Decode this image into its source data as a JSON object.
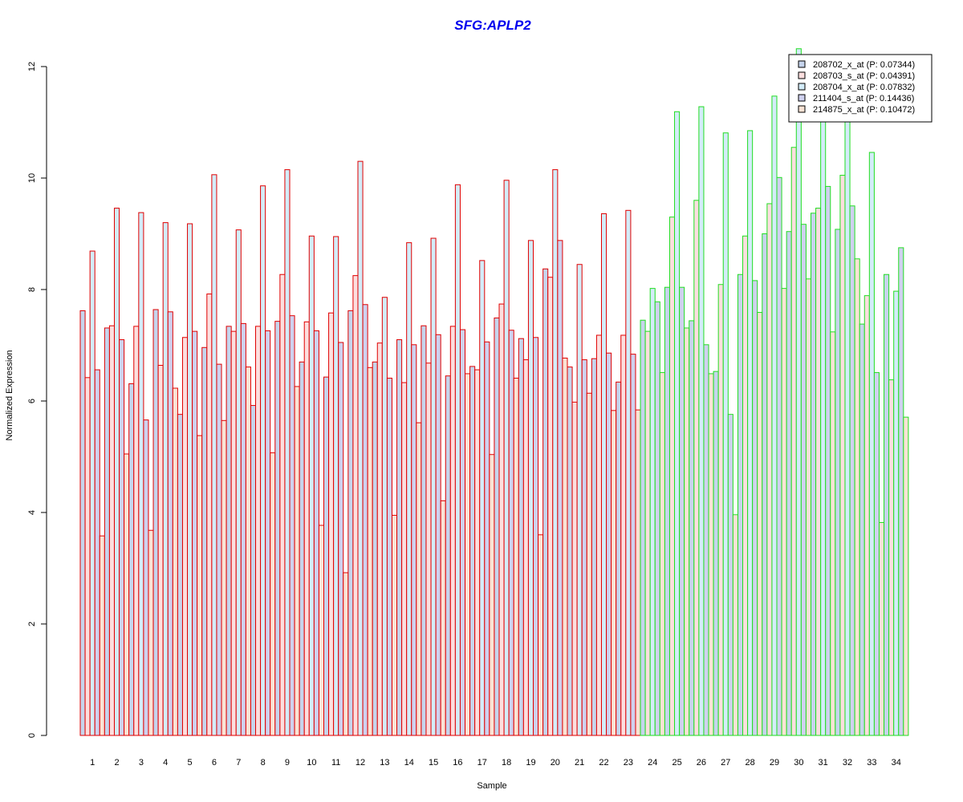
{
  "chart_data": {
    "type": "bar",
    "title": "SFG:APLP2",
    "xlabel": "Sample",
    "ylabel": "Normalized Expression",
    "ylim": [
      0,
      12
    ],
    "yticks": [
      "0",
      "2",
      "4",
      "6",
      "8",
      "10",
      "12"
    ],
    "categories": [
      "1",
      "2",
      "3",
      "4",
      "5",
      "6",
      "7",
      "8",
      "9",
      "10",
      "11",
      "12",
      "13",
      "14",
      "15",
      "16",
      "17",
      "18",
      "19",
      "20",
      "21",
      "22",
      "23",
      "24",
      "25",
      "26",
      "27",
      "28",
      "29",
      "30",
      "31",
      "32",
      "33",
      "34"
    ],
    "group_border_colors": [
      "#e00000",
      "#e00000",
      "#e00000",
      "#e00000",
      "#e00000",
      "#e00000",
      "#e00000",
      "#e00000",
      "#e00000",
      "#e00000",
      "#e00000",
      "#e00000",
      "#e00000",
      "#e00000",
      "#e00000",
      "#e00000",
      "#e00000",
      "#e00000",
      "#e00000",
      "#e00000",
      "#e00000",
      "#e00000",
      "#e00000",
      "#22dd22",
      "#22dd22",
      "#22dd22",
      "#22dd22",
      "#22dd22",
      "#22dd22",
      "#22dd22",
      "#22dd22",
      "#22dd22",
      "#22dd22",
      "#22dd22"
    ],
    "series": [
      {
        "name": "208702_x_at (P: 0.07344)",
        "fill": "#c6d4ec",
        "values": [
          7.62,
          7.31,
          6.31,
          7.64,
          5.76,
          6.96,
          7.34,
          5.92,
          7.43,
          6.7,
          6.43,
          7.62,
          6.7,
          7.1,
          7.35,
          6.45,
          6.62,
          7.49,
          7.12,
          8.37,
          6.61,
          6.76,
          6.34,
          7.45,
          8.04,
          7.44,
          6.53,
          8.27,
          9.0,
          9.04,
          9.37,
          9.08,
          7.38,
          8.27
        ]
      },
      {
        "name": "208703_s_at (P: 0.04391)",
        "fill": "#fcdede",
        "values": [
          6.42,
          7.35,
          7.34,
          6.64,
          7.14,
          7.92,
          7.25,
          7.34,
          8.27,
          7.42,
          7.58,
          8.25,
          7.04,
          6.33,
          6.68,
          7.34,
          6.56,
          7.74,
          6.74,
          8.22,
          5.98,
          7.18,
          7.18,
          7.25,
          9.3,
          9.6,
          8.09,
          8.96,
          9.54,
          10.55,
          9.46,
          10.05,
          7.89,
          6.38
        ]
      },
      {
        "name": "208704_x_at (P: 0.07832)",
        "fill": "#d3ecf9",
        "values": [
          8.69,
          9.46,
          9.38,
          9.2,
          9.18,
          10.06,
          9.07,
          9.86,
          10.15,
          8.96,
          8.95,
          10.3,
          7.86,
          8.84,
          8.92,
          9.88,
          8.52,
          9.96,
          8.88,
          10.15,
          8.45,
          9.36,
          9.42,
          8.02,
          11.19,
          11.28,
          10.81,
          10.85,
          11.47,
          12.32,
          11.16,
          11.09,
          10.46,
          7.97
        ]
      },
      {
        "name": "211404_s_at (P: 0.14436)",
        "fill": "#cfd1ef",
        "values": [
          6.56,
          7.1,
          5.66,
          7.6,
          7.25,
          6.66,
          7.39,
          7.26,
          7.53,
          7.26,
          7.05,
          7.73,
          6.41,
          7.01,
          7.19,
          7.28,
          7.06,
          7.27,
          7.14,
          8.88,
          6.74,
          6.86,
          6.84,
          7.78,
          8.04,
          7.01,
          5.76,
          8.16,
          10.01,
          9.17,
          9.85,
          9.5,
          6.51,
          8.75
        ]
      },
      {
        "name": "214875_x_at (P: 0.10472)",
        "fill": "#fae3d5",
        "values": [
          3.58,
          5.05,
          3.68,
          6.23,
          5.38,
          5.65,
          6.61,
          5.07,
          6.26,
          3.77,
          2.92,
          6.6,
          3.95,
          5.61,
          4.21,
          6.49,
          5.04,
          6.41,
          3.6,
          6.77,
          6.14,
          5.83,
          5.84,
          6.51,
          7.31,
          6.49,
          3.96,
          7.59,
          8.02,
          8.19,
          7.24,
          8.55,
          3.82,
          5.71
        ]
      }
    ]
  }
}
